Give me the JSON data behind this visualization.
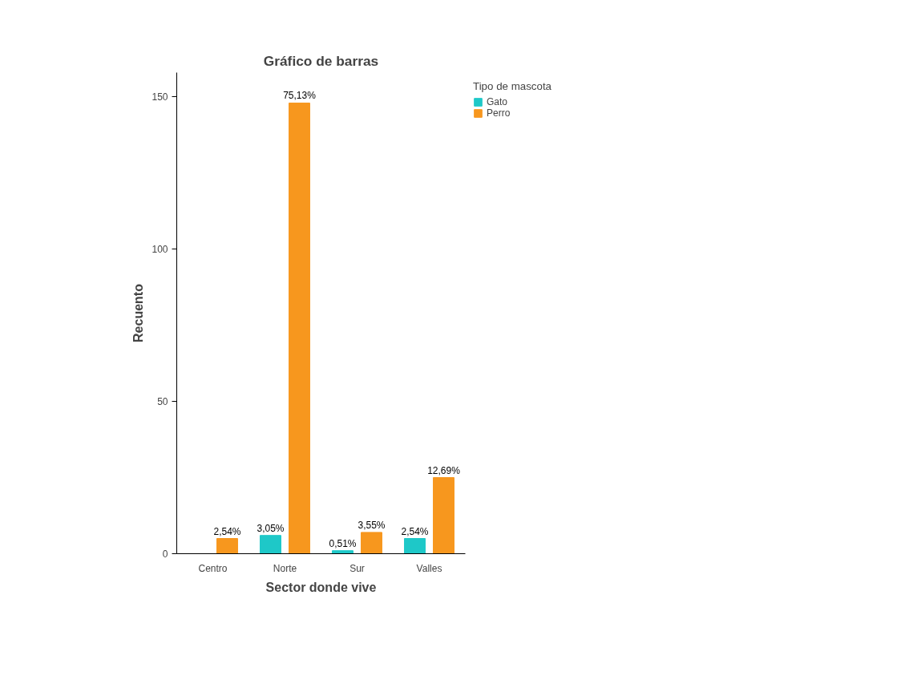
{
  "chart_data": {
    "type": "bar",
    "title": "Gráfico de barras",
    "xlabel": "Sector donde vive",
    "ylabel": "Recuento",
    "legend_title": "Tipo de mascota",
    "categories": [
      "Centro",
      "Norte",
      "Sur",
      "Valles"
    ],
    "series": [
      {
        "name": "Gato",
        "color": "#1ec8c8",
        "values": [
          null,
          6,
          1,
          5
        ]
      },
      {
        "name": "Perro",
        "color": "#f7971e",
        "values": [
          5,
          148,
          7,
          25
        ]
      }
    ],
    "annotations": [
      "3,05%",
      "0,51%",
      "2,54%",
      "2,54%",
      "75,13%",
      "3,55%",
      "12,69%"
    ],
    "ylim": [
      0,
      158
    ],
    "yticks": [
      0,
      50,
      100,
      150
    ],
    "grid": false,
    "legend": "top right"
  }
}
